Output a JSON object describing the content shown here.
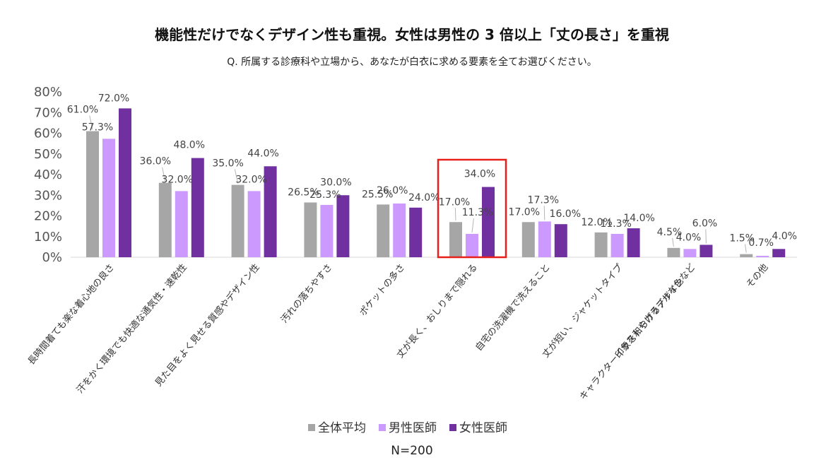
{
  "chart_data": {
    "type": "bar",
    "title": "機能性だけでなくデザイン性も重視。女性は男性の 3 倍以上「丈の長さ」を重視",
    "subtitle": "Q. 所属する診療科や立場から、あなたが白衣に求める要素を全てお選びください。",
    "ylim": [
      0,
      80
    ],
    "yticks": [
      "0%",
      "10%",
      "20%",
      "30%",
      "40%",
      "50%",
      "60%",
      "70%",
      "80%"
    ],
    "xlabel": "",
    "ylabel": "",
    "categories": [
      "長時間着ても楽な着心地の良さ",
      "汗をかく環境でも快適な通気性・速乾性",
      "見た目をよく見せる質感やデザイン性",
      "汚れの落ちやすさ",
      "ポケットの多さ",
      "丈が長く、おしりまで隠れる",
      "自宅の洗濯機で洗えること",
      "丈が短い、ジャケットタイプ",
      [
        "キャラクターイラストやカラフルな色など",
        "印象を和らげるデザイン"
      ],
      "その他"
    ],
    "series": [
      {
        "name": "全体平均",
        "color": "#a6a6a6",
        "values": [
          61.0,
          36.0,
          35.0,
          26.5,
          25.5,
          17.0,
          17.0,
          12.0,
          4.5,
          1.5
        ],
        "labels": [
          "61.0%",
          "36.0%",
          "35.0%",
          "26.5%",
          "25.5%",
          "17.0%",
          "17.0%",
          "12.0%",
          "4.5%",
          "1.5%"
        ]
      },
      {
        "name": "男性医師",
        "color": "#cc99ff",
        "values": [
          57.3,
          32.0,
          32.0,
          25.3,
          26.0,
          11.3,
          17.3,
          11.3,
          4.0,
          0.7
        ],
        "labels": [
          "57.3%",
          "32.0%",
          "32.0%",
          "25.3%",
          "26.0%",
          "11.3%",
          "17.3%",
          "11.3%",
          "4.0%",
          "0.7%"
        ]
      },
      {
        "name": "女性医師",
        "color": "#7030a0",
        "values": [
          72.0,
          48.0,
          44.0,
          30.0,
          24.0,
          34.0,
          16.0,
          14.0,
          6.0,
          4.0
        ],
        "labels": [
          "72.0%",
          "48.0%",
          "44.0%",
          "30.0%",
          "24.0%",
          "34.0%",
          "16.0%",
          "14.0%",
          "6.0%",
          "4.0%"
        ]
      }
    ],
    "highlight_category_index": 5,
    "highlight_color": "#e8201c",
    "legend_position": "bottom",
    "note": "N=200"
  }
}
